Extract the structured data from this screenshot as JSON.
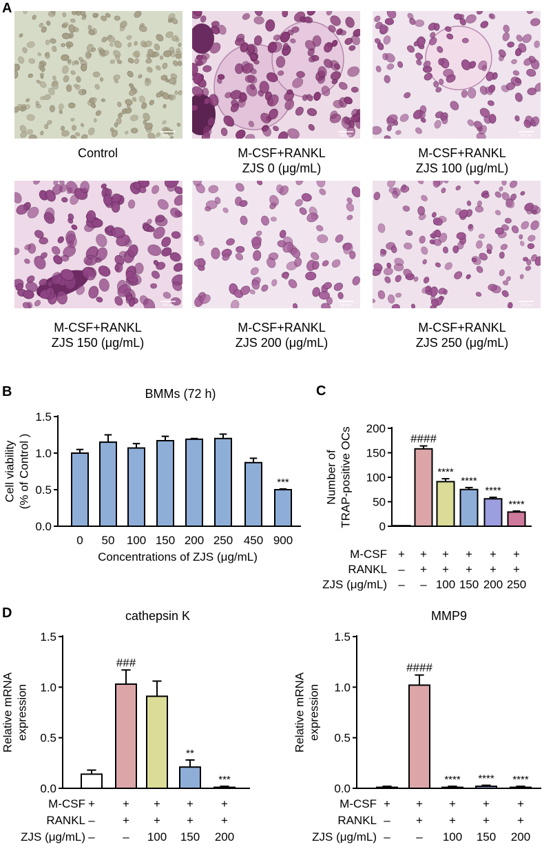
{
  "panel_a": {
    "letter": "A",
    "images": [
      {
        "line1": "Control",
        "line2": "",
        "theme": "control",
        "scale_bar": "200 μm"
      },
      {
        "line1": "M-CSF+RANKL",
        "line2": "ZJS 0 (μg/mL)",
        "theme": "giant",
        "scale_bar": "200 μm"
      },
      {
        "line1": "M-CSF+RANKL",
        "line2": "ZJS 100 (μg/mL)",
        "theme": "medium",
        "scale_bar": "200 μm"
      },
      {
        "line1": "M-CSF+RANKL",
        "line2": "ZJS 150 (μg/mL)",
        "theme": "dense",
        "scale_bar": "200 μm"
      },
      {
        "line1": "M-CSF+RANKL",
        "line2": "ZJS 200 (μg/mL)",
        "theme": "sparse",
        "scale_bar": "200 μm"
      },
      {
        "line1": "M-CSF+RANKL",
        "line2": "ZJS 250 (μg/mL)",
        "theme": "small",
        "scale_bar": "200 μm"
      }
    ]
  },
  "chart_data": [
    {
      "panel": "B",
      "type": "bar",
      "title": "BMMs (72 h)",
      "xlabel": "Concentrations of ZJS (μg/mL)",
      "ylabel": [
        "Cell viability",
        "(% of Control )"
      ],
      "categories": [
        "0",
        "50",
        "100",
        "150",
        "200",
        "250",
        "450",
        "900"
      ],
      "values": [
        1.0,
        1.15,
        1.07,
        1.17,
        1.19,
        1.2,
        0.87,
        0.5
      ],
      "errors": [
        0.05,
        0.1,
        0.06,
        0.06,
        0.01,
        0.06,
        0.06,
        0.01
      ],
      "annotations": [
        "",
        "",
        "",
        "",
        "",
        "",
        "",
        "***"
      ],
      "colors": [
        "#8eaed8",
        "#8eaed8",
        "#8eaed8",
        "#8eaed8",
        "#8eaed8",
        "#8eaed8",
        "#8eaed8",
        "#8eaed8"
      ],
      "yticks": [
        "0.0",
        "0.5",
        "1.0",
        "1.5"
      ],
      "ylim": [
        0,
        1.5
      ]
    },
    {
      "panel": "C",
      "type": "bar",
      "title": "",
      "ylabel": [
        "Number of",
        "TRAP-positive OCs"
      ],
      "values": [
        0,
        158,
        91,
        75,
        56,
        29
      ],
      "errors": [
        0,
        6,
        6,
        4,
        3,
        2
      ],
      "annotations": [
        "",
        "####",
        "****",
        "****",
        "****",
        "****"
      ],
      "colors": [
        "#ffffff",
        "#dca6a8",
        "#dadc98",
        "#8eaed8",
        "#9c9ee0",
        "#cf7a9c"
      ],
      "yticks": [
        "0",
        "50",
        "100",
        "150",
        "200"
      ],
      "ylim": [
        0,
        200
      ],
      "condition_rows": [
        {
          "label": "M-CSF",
          "cells": [
            "+",
            "+",
            "+",
            "+",
            "+",
            "+"
          ]
        },
        {
          "label": "RANKL",
          "cells": [
            "–",
            "+",
            "+",
            "+",
            "+",
            "+"
          ]
        },
        {
          "label": "ZJS (μg/mL)",
          "cells": [
            "–",
            "–",
            "100",
            "150",
            "200",
            "250"
          ]
        }
      ]
    },
    {
      "panel": "D",
      "type": "bar",
      "title": "cathepsin K",
      "ylabel": [
        "Relative mRNA",
        "expression"
      ],
      "values": [
        0.14,
        1.03,
        0.91,
        0.21,
        0.01
      ],
      "errors": [
        0.04,
        0.14,
        0.15,
        0.07,
        0.01
      ],
      "annotations": [
        "",
        "###",
        "",
        "**",
        "***"
      ],
      "colors": [
        "#ffffff",
        "#dca6a8",
        "#dadc98",
        "#8eaed8",
        "#8eaed8"
      ],
      "yticks": [
        "0.0",
        "0.5",
        "1.0",
        "1.5"
      ],
      "ylim": [
        0,
        1.5
      ],
      "condition_rows": [
        {
          "label": "M-CSF",
          "cells": [
            "+",
            "+",
            "+",
            "+",
            "+"
          ]
        },
        {
          "label": "RANKL",
          "cells": [
            "–",
            "+",
            "+",
            "+",
            "+"
          ]
        },
        {
          "label": "ZJS (μg/mL)",
          "cells": [
            "–",
            "–",
            "100",
            "150",
            "200"
          ]
        }
      ]
    },
    {
      "panel": "",
      "type": "bar",
      "title": "MMP9",
      "ylabel": [
        "Relative mRNA",
        "expression"
      ],
      "values": [
        0.01,
        1.02,
        0.01,
        0.02,
        0.01
      ],
      "errors": [
        0.01,
        0.1,
        0.01,
        0.01,
        0.01
      ],
      "annotations": [
        "",
        "####",
        "****",
        "****",
        "****"
      ],
      "colors": [
        "#ffffff",
        "#dca6a8",
        "#dadc98",
        "#8eaed8",
        "#8eaed8"
      ],
      "yticks": [
        "0.0",
        "0.5",
        "1.0",
        "1.5"
      ],
      "ylim": [
        0,
        1.5
      ],
      "condition_rows": [
        {
          "label": "M-CSF",
          "cells": [
            "+",
            "+",
            "+",
            "+",
            "+"
          ]
        },
        {
          "label": "RANKL",
          "cells": [
            "–",
            "+",
            "+",
            "+",
            "+"
          ]
        },
        {
          "label": "ZJS (μg/mL)",
          "cells": [
            "–",
            "–",
            "100",
            "150",
            "200"
          ]
        }
      ]
    }
  ]
}
